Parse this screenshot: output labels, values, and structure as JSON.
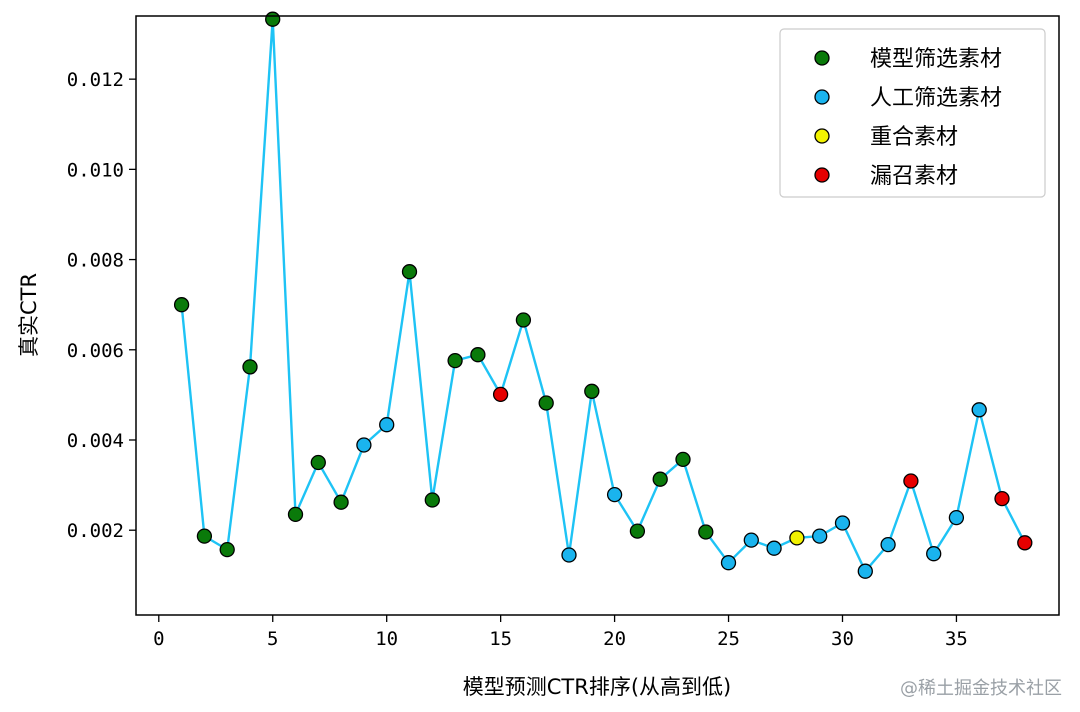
{
  "chart_data": {
    "type": "scatter",
    "title": "",
    "xlabel": "模型预测CTR排序(从高到低)",
    "ylabel": "真实CTR",
    "xlim": [
      -1,
      39.5
    ],
    "ylim": [
      0.00012,
      0.0134
    ],
    "xticks": [
      0,
      5,
      10,
      15,
      20,
      25,
      30,
      35
    ],
    "xtick_labels": [
      "0",
      "5",
      "10",
      "15",
      "20",
      "25",
      "30",
      "35"
    ],
    "yticks": [
      0.002,
      0.004,
      0.006,
      0.008,
      0.01,
      0.012
    ],
    "ytick_labels": [
      "0.002",
      "0.004",
      "0.006",
      "0.008",
      "0.010",
      "0.012"
    ],
    "grid": false,
    "legend_position": "top-right",
    "line_color": "#1ec3f5",
    "series": [
      {
        "name": "模型筛选素材",
        "color": "#0a7a0a",
        "x": [
          1,
          2,
          3,
          4,
          5,
          6,
          7,
          8,
          11,
          12,
          13,
          14,
          16,
          17,
          19,
          21,
          22,
          23,
          24
        ],
        "values": [
          0.007,
          0.00187,
          0.00157,
          0.00562,
          0.01333,
          0.00235,
          0.0035,
          0.00262,
          0.00773,
          0.00267,
          0.00576,
          0.00589,
          0.00666,
          0.00482,
          0.00508,
          0.00198,
          0.00313,
          0.00357,
          0.00196
        ]
      },
      {
        "name": "人工筛选素材",
        "color": "#1ab4ee",
        "x": [
          9,
          10,
          18,
          20,
          25,
          26,
          27,
          29,
          30,
          31,
          32,
          34,
          35,
          36
        ],
        "values": [
          0.00389,
          0.00434,
          0.00145,
          0.00279,
          0.00128,
          0.00178,
          0.0016,
          0.00187,
          0.00216,
          0.00109,
          0.00168,
          0.00148,
          0.00228,
          0.00467
        ]
      },
      {
        "name": "重合素材",
        "color": "#f2f200",
        "x": [
          28
        ],
        "values": [
          0.00183
        ]
      },
      {
        "name": "漏召素材",
        "color": "#e60000",
        "x": [
          15,
          33,
          37,
          38
        ],
        "values": [
          0.00501,
          0.00309,
          0.0027,
          0.00172
        ]
      }
    ]
  },
  "watermark": "@稀土掘金技术社区"
}
